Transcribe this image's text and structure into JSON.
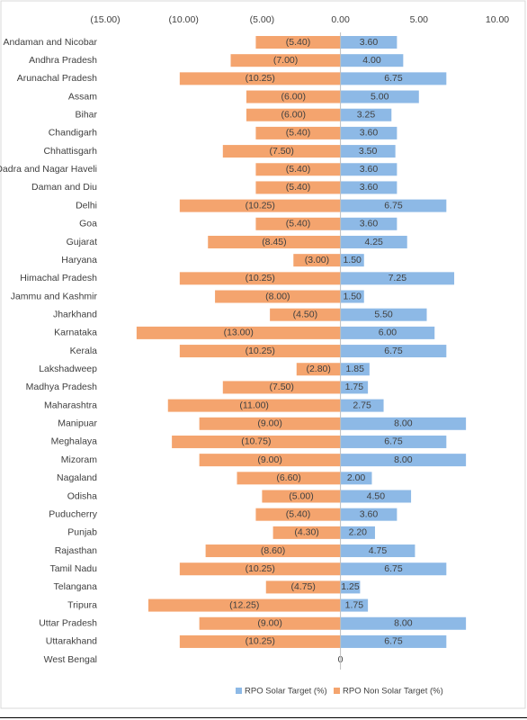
{
  "chart_data": {
    "type": "diverging-bar",
    "categories": [
      "Andaman and Nicobar",
      "Andhra Pradesh",
      "Arunachal Pradesh",
      "Assam",
      "Bihar",
      "Chandigarh",
      "Chhattisgarh",
      "Dadra and Nagar Haveli",
      "Daman and Diu",
      "Delhi",
      "Goa",
      "Gujarat",
      "Haryana",
      "Himachal Pradesh",
      "Jammu and Kashmir",
      "Jharkhand",
      "Karnataka",
      "Kerala",
      "Lakshadweep",
      "Madhya Pradesh",
      "Maharashtra",
      "Manipuar",
      "Meghalaya",
      "Mizoram",
      "Nagaland",
      "Odisha",
      "Puducherry",
      "Punjab",
      "Rajasthan",
      "Tamil Nadu",
      "Telangana",
      "Tripura",
      "Uttar Pradesh",
      "Uttarakhand",
      "West Bengal"
    ],
    "series": [
      {
        "name": "RPO Solar Target  (%)",
        "color": "#8db9e6",
        "values": [
          3.6,
          4,
          6.75,
          5,
          3.25,
          3.6,
          3.5,
          3.6,
          3.6,
          6.75,
          3.6,
          4.25,
          1.5,
          7.25,
          1.5,
          5.5,
          6,
          6.75,
          1.85,
          1.75,
          2.75,
          8,
          6.75,
          8,
          2,
          4.5,
          3.6,
          2.2,
          4.75,
          6.75,
          1.25,
          1.75,
          8,
          6.75,
          0
        ],
        "value_labels": [
          "3.60",
          "4.00",
          "6.75",
          "5.00",
          "3.25",
          "3.60",
          "3.50",
          "3.60",
          "3.60",
          "6.75",
          "3.60",
          "4.25",
          "1.50",
          "7.25",
          "1.50",
          "5.50",
          "6.00",
          "6.75",
          "1.85",
          "1.75",
          "2.75",
          "8.00",
          "6.75",
          "8.00",
          "2.00",
          "4.50",
          "3.60",
          "2.20",
          "4.75",
          "6.75",
          "1.25",
          "1.75",
          "8.00",
          "6.75",
          "0"
        ]
      },
      {
        "name": "RPO Non Solar Target  (%)",
        "color": "#f4a46e",
        "values": [
          -5.4,
          -7,
          -10.25,
          -6,
          -6,
          -5.4,
          -7.5,
          -5.4,
          -5.4,
          -10.25,
          -5.4,
          -8.45,
          -3,
          -10.25,
          -8,
          -4.5,
          -13,
          -10.25,
          -2.8,
          -7.5,
          -11,
          -9,
          -10.75,
          -9,
          -6.6,
          -5,
          -5.4,
          -4.3,
          -8.6,
          -10.25,
          -4.75,
          -12.25,
          -9,
          -10.25,
          null
        ],
        "value_labels": [
          "(5.40)",
          "(7.00)",
          "(10.25)",
          "(6.00)",
          "(6.00)",
          "(5.40)",
          "(7.50)",
          "(5.40)",
          "(5.40)",
          "(10.25)",
          "(5.40)",
          "(8.45)",
          "(3.00)",
          "(10.25)",
          "(8.00)",
          "(4.50)",
          "(13.00)",
          "(10.25)",
          "(2.80)",
          "(7.50)",
          "(11.00)",
          "(9.00)",
          "(10.75)",
          "(9.00)",
          "(6.60)",
          "(5.00)",
          "(5.40)",
          "(4.30)",
          "(8.60)",
          "(10.25)",
          "(4.75)",
          "(12.25)",
          "(9.00)",
          "(10.25)",
          null
        ]
      }
    ],
    "xlim": [
      -15,
      10
    ],
    "xticks": [
      {
        "value": -15,
        "label": "(15.00)"
      },
      {
        "value": -10,
        "label": "(10.00)"
      },
      {
        "value": -5,
        "label": "(5.00)"
      },
      {
        "value": 0,
        "label": "0.00"
      },
      {
        "value": 5,
        "label": "5.00"
      },
      {
        "value": 10,
        "label": "10.00"
      }
    ],
    "legend": "bottom"
  }
}
